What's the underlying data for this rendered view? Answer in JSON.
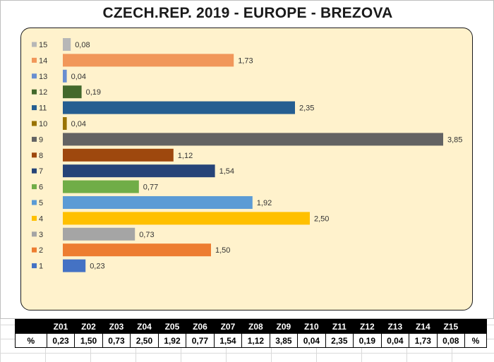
{
  "title": "CZECH.REP. 2019 - EUROPE - BREZOVA",
  "chart_data": {
    "type": "bar",
    "orientation": "horizontal",
    "categories": [
      "1",
      "2",
      "3",
      "4",
      "5",
      "6",
      "7",
      "8",
      "9",
      "10",
      "11",
      "12",
      "13",
      "14",
      "15"
    ],
    "values": [
      0.23,
      1.5,
      0.73,
      2.5,
      1.92,
      0.77,
      1.54,
      1.12,
      3.85,
      0.04,
      2.35,
      0.19,
      0.04,
      1.73,
      0.08
    ],
    "value_labels": [
      "0,23",
      "1,50",
      "0,73",
      "2,50",
      "1,92",
      "0,77",
      "1,54",
      "1,12",
      "3,85",
      "0,04",
      "2,35",
      "0,19",
      "0,04",
      "1,73",
      "0,08"
    ],
    "colors": [
      "#4472c4",
      "#ed7d31",
      "#a5a5a5",
      "#ffc000",
      "#5b9bd5",
      "#70ad47",
      "#264478",
      "#9e480e",
      "#636363",
      "#997300",
      "#255e91",
      "#43682b",
      "#698ed0",
      "#f1975a",
      "#b7b7b7"
    ],
    "legend_placement": "left",
    "grid": false,
    "xlim": [
      0,
      4.2
    ]
  },
  "table": {
    "header": [
      "",
      "Z01",
      "Z02",
      "Z03",
      "Z04",
      "Z05",
      "Z06",
      "Z07",
      "Z08",
      "Z09",
      "Z10",
      "Z11",
      "Z12",
      "Z13",
      "Z14",
      "Z15",
      ""
    ],
    "row_label": "%",
    "row_label_end": "%",
    "values": [
      "0,23",
      "1,50",
      "0,73",
      "2,50",
      "1,92",
      "0,77",
      "1,54",
      "1,12",
      "3,85",
      "0,04",
      "2,35",
      "0,19",
      "0,04",
      "1,73",
      "0,08"
    ]
  }
}
